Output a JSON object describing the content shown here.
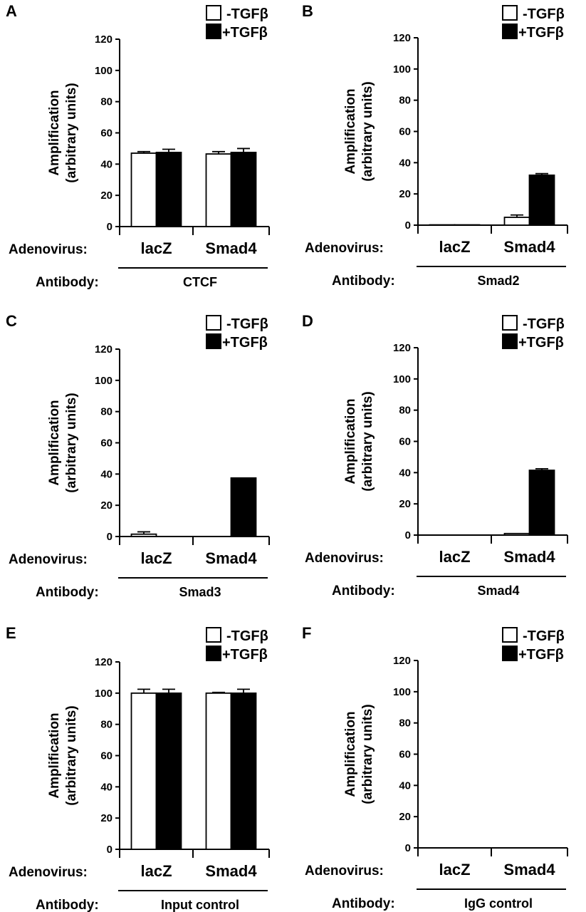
{
  "legend": {
    "minus": "-TGF",
    "plus": "+TGF",
    "beta": "β"
  },
  "ylabel_line1": "Amplification",
  "ylabel_line2": "(arbitrary units)",
  "row_labels": {
    "adenovirus": "Adenovirus:",
    "antibody": "Antibody:"
  },
  "colors": {
    "minus_fill": "#ffffff",
    "plus_fill": "#000000",
    "axis": "#000000"
  },
  "chart_data": [
    {
      "type": "bar",
      "panel": "A",
      "antibody": "CTCF",
      "categories": [
        "lacZ",
        "Smad4"
      ],
      "ylim": [
        0,
        120
      ],
      "yticks": [
        0,
        20,
        40,
        60,
        80,
        100,
        120
      ],
      "series": [
        {
          "name": "-TGFβ",
          "values": [
            47,
            46.5
          ],
          "errors": [
            1,
            1.5
          ]
        },
        {
          "name": "+TGFβ",
          "values": [
            47.5,
            47.5
          ],
          "errors": [
            2,
            2.5
          ]
        }
      ]
    },
    {
      "type": "bar",
      "panel": "B",
      "antibody": "Smad2",
      "categories": [
        "lacZ",
        "Smad4"
      ],
      "ylim": [
        0,
        120
      ],
      "yticks": [
        0,
        20,
        40,
        60,
        80,
        100,
        120
      ],
      "series": [
        {
          "name": "-TGFβ",
          "values": [
            0.2,
            5
          ],
          "errors": [
            0,
            1.5
          ]
        },
        {
          "name": "+TGFβ",
          "values": [
            0.2,
            32
          ],
          "errors": [
            0,
            1
          ]
        }
      ]
    },
    {
      "type": "bar",
      "panel": "C",
      "antibody": "Smad3",
      "categories": [
        "lacZ",
        "Smad4"
      ],
      "ylim": [
        0,
        120
      ],
      "yticks": [
        0,
        20,
        40,
        60,
        80,
        100,
        120
      ],
      "series": [
        {
          "name": "-TGFβ",
          "values": [
            1.5,
            0
          ],
          "errors": [
            1.5,
            0
          ]
        },
        {
          "name": "+TGFβ",
          "values": [
            0,
            37.5
          ],
          "errors": [
            0,
            0
          ]
        }
      ]
    },
    {
      "type": "bar",
      "panel": "D",
      "antibody": "Smad4",
      "categories": [
        "lacZ",
        "Smad4"
      ],
      "ylim": [
        0,
        120
      ],
      "yticks": [
        0,
        20,
        40,
        60,
        80,
        100,
        120
      ],
      "series": [
        {
          "name": "-TGFβ",
          "values": [
            0,
            1
          ],
          "errors": [
            0,
            0
          ]
        },
        {
          "name": "+TGFβ",
          "values": [
            0,
            41.5
          ],
          "errors": [
            0,
            1
          ]
        }
      ]
    },
    {
      "type": "bar",
      "panel": "E",
      "antibody": "Input control",
      "categories": [
        "lacZ",
        "Smad4"
      ],
      "ylim": [
        0,
        120
      ],
      "yticks": [
        0,
        20,
        40,
        60,
        80,
        100,
        120
      ],
      "series": [
        {
          "name": "-TGFβ",
          "values": [
            100,
            100
          ],
          "errors": [
            2.5,
            0.5
          ]
        },
        {
          "name": "+TGFβ",
          "values": [
            100,
            100
          ],
          "errors": [
            2.5,
            2.5
          ]
        }
      ]
    },
    {
      "type": "bar",
      "panel": "F",
      "antibody": "IgG control",
      "categories": [
        "lacZ",
        "Smad4"
      ],
      "ylim": [
        0,
        120
      ],
      "yticks": [
        0,
        20,
        40,
        60,
        80,
        100,
        120
      ],
      "series": [
        {
          "name": "-TGFβ",
          "values": [
            0,
            0
          ],
          "errors": [
            0,
            0
          ]
        },
        {
          "name": "+TGFβ",
          "values": [
            0,
            0
          ],
          "errors": [
            0,
            0
          ]
        }
      ]
    }
  ]
}
